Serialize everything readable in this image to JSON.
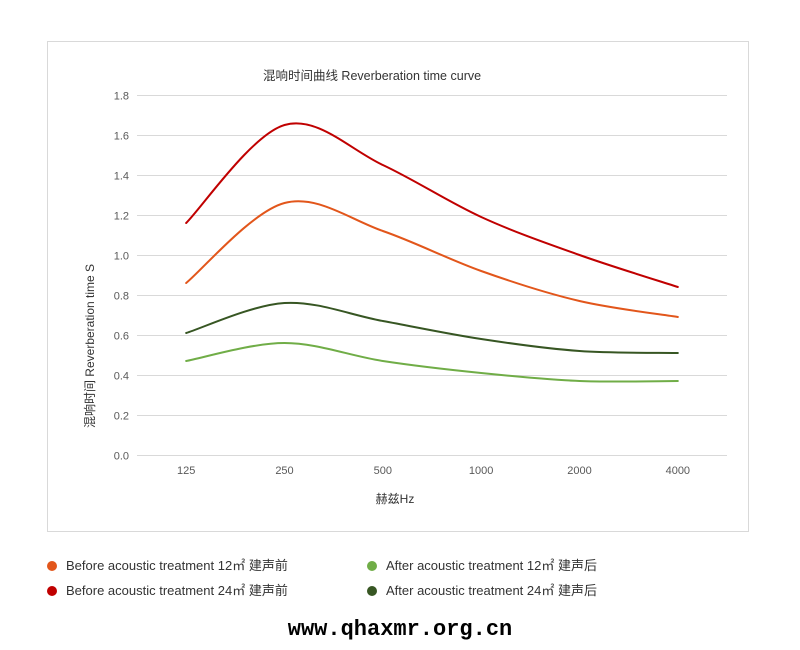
{
  "chart_data": {
    "type": "line",
    "smooth": true,
    "title": "混响时间曲线 Reverberation time curve",
    "xlabel": "赫兹Hz",
    "ylabel": "混响时间 Reverberation time S",
    "categories": [
      "125",
      "250",
      "500",
      "1000",
      "2000",
      "4000"
    ],
    "ylim": [
      0,
      1.8
    ],
    "yticks": [
      "0.0",
      "0.2",
      "0.4",
      "0.6",
      "0.8",
      "1.0",
      "1.2",
      "1.4",
      "1.6",
      "1.8"
    ],
    "grid": true,
    "legend": "bottom",
    "series": [
      {
        "name": "Before acoustic treatment 12㎡ 建声前",
        "color": "#e2561b",
        "values": [
          0.86,
          1.26,
          1.12,
          0.92,
          0.77,
          0.69
        ]
      },
      {
        "name": "Before acoustic treatment 24㎡ 建声前",
        "color": "#c00000",
        "values": [
          1.16,
          1.65,
          1.45,
          1.19,
          1.0,
          0.84
        ]
      },
      {
        "name": "After acoustic treatment 12㎡ 建声后",
        "color": "#70ad47",
        "values": [
          0.47,
          0.56,
          0.47,
          0.41,
          0.37,
          0.37
        ]
      },
      {
        "name": "After acoustic treatment 24㎡ 建声后",
        "color": "#375623",
        "values": [
          0.61,
          0.76,
          0.67,
          0.58,
          0.52,
          0.51
        ]
      }
    ]
  },
  "watermark": "www.qhaxmr.org.cn"
}
